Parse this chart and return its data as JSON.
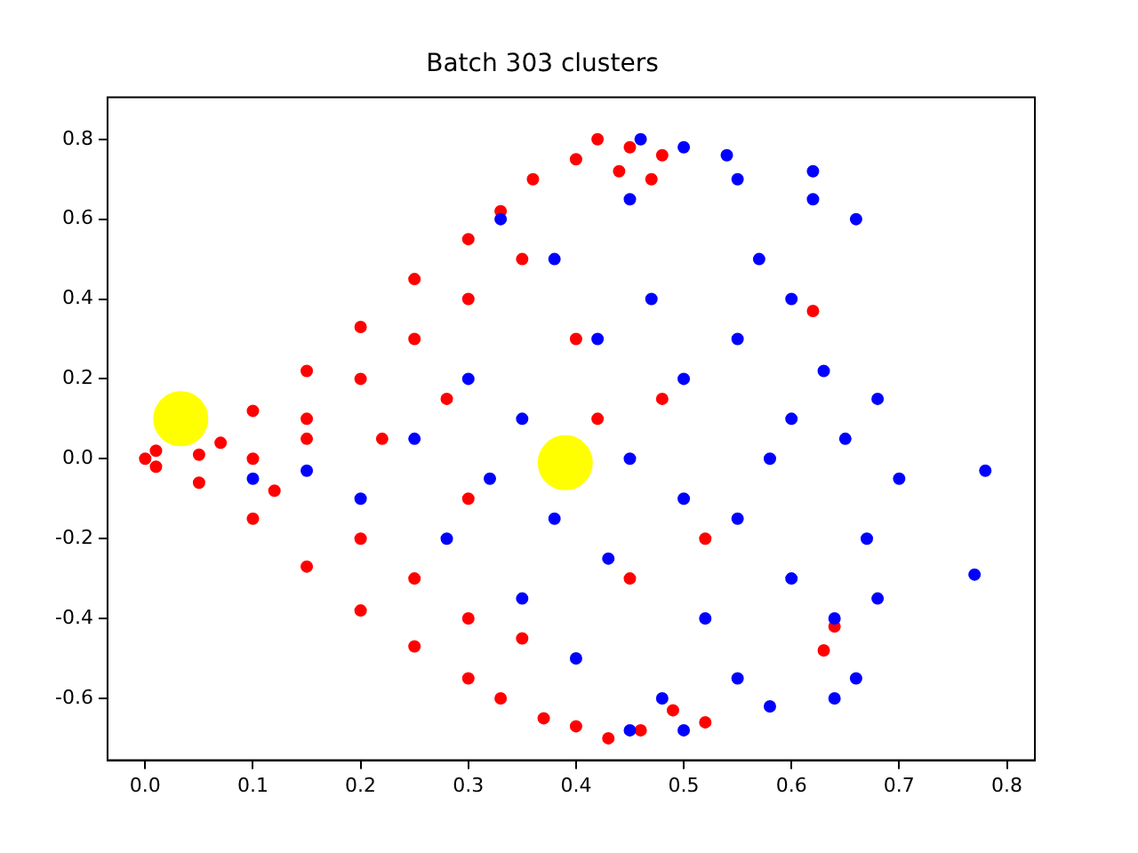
{
  "chart_data": {
    "type": "scatter",
    "title": "Batch 303 clusters",
    "marker": "circle",
    "grid": false,
    "legend": false,
    "xlim": [
      -0.035,
      0.826
    ],
    "xticks": [
      {
        "value": 0,
        "label": "0.0"
      },
      0.1,
      0.2,
      0.3,
      0.4,
      0.5,
      0.6,
      0.7,
      0.8
    ],
    "ylim": [
      -0.755,
      0.905
    ],
    "yticks": [
      -0.6,
      -0.4,
      -0.2,
      {
        "value": 0,
        "label": "0.0"
      },
      0.2,
      0.4,
      0.6,
      0.8
    ],
    "series": [
      {
        "color": "#ff0000",
        "x": [
          0,
          0.01,
          0.01,
          0.07,
          0.05,
          0.1,
          0.1,
          0.15,
          0.15,
          0.2,
          0.2,
          0.25,
          0.25,
          0.3,
          0.3,
          0.33,
          0.33,
          0.36,
          0.37,
          0.4,
          0.4,
          0.42,
          0.43,
          0.45,
          0.46,
          0.48,
          0.49,
          0.52,
          0.47,
          0.44,
          0.1,
          0.15,
          0.2,
          0.25,
          0.2,
          0.25,
          0.3,
          0.3,
          0.35,
          0.35,
          0.15,
          0.05,
          0.12,
          0.4,
          0.42,
          0.45,
          0.62,
          0.64,
          0.63,
          0.48,
          0.52,
          0.22,
          0.28,
          0.3
        ],
        "values": [
          0,
          0.02,
          -0.02,
          0.04,
          -0.06,
          0.12,
          -0.15,
          0.22,
          -0.27,
          0.33,
          -0.38,
          0.45,
          -0.47,
          0.55,
          -0.55,
          0.62,
          -0.6,
          0.7,
          -0.65,
          0.75,
          -0.67,
          0.8,
          -0.7,
          0.78,
          -0.68,
          0.76,
          -0.63,
          -0.66,
          0.7,
          0.72,
          0,
          0.1,
          0.2,
          0.3,
          -0.2,
          -0.3,
          0.4,
          -0.4,
          0.5,
          -0.45,
          0.05,
          0.01,
          -0.08,
          0.3,
          0.1,
          -0.3,
          0.37,
          -0.42,
          -0.48,
          0.15,
          -0.2,
          0.05,
          0.15,
          -0.1
        ]
      },
      {
        "color": "#0000ff",
        "x": [
          0.1,
          0.15,
          0.2,
          0.25,
          0.28,
          0.3,
          0.33,
          0.35,
          0.38,
          0.4,
          0.42,
          0.45,
          0.46,
          0.48,
          0.5,
          0.5,
          0.52,
          0.54,
          0.55,
          0.55,
          0.57,
          0.58,
          0.6,
          0.6,
          0.62,
          0.62,
          0.63,
          0.64,
          0.65,
          0.66,
          0.67,
          0.68,
          0.7,
          0.68,
          0.66,
          0.64,
          0.58,
          0.5,
          0.45,
          0.78,
          0.77,
          0.45,
          0.35,
          0.55,
          0.55,
          0.6,
          0.5,
          0.47,
          0.43,
          0.38,
          0.32
        ],
        "values": [
          -0.05,
          -0.03,
          -0.1,
          0.05,
          -0.2,
          0.2,
          0.6,
          -0.35,
          0.5,
          -0.5,
          0.3,
          0.65,
          0.8,
          -0.6,
          0.78,
          0.2,
          -0.4,
          0.76,
          0.7,
          -0.55,
          0.5,
          0,
          0.4,
          -0.3,
          0.72,
          0.65,
          0.22,
          -0.4,
          0.05,
          0.6,
          -0.2,
          0.15,
          -0.05,
          -0.35,
          -0.55,
          -0.6,
          -0.62,
          -0.68,
          -0.68,
          -0.03,
          -0.29,
          0,
          0.1,
          0.3,
          -0.15,
          0.1,
          -0.1,
          0.4,
          -0.25,
          -0.15,
          -0.05
        ]
      },
      {
        "color": "#ffff00",
        "x": [
          0.033,
          0.39
        ],
        "values": [
          0.1,
          -0.01
        ]
      }
    ]
  }
}
